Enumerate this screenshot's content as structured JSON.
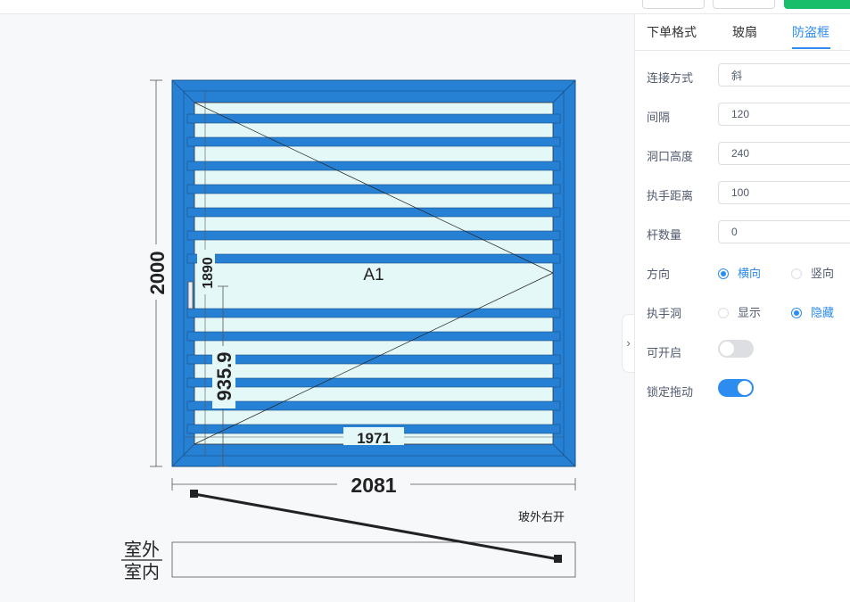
{
  "tabs": [
    {
      "label": "下单格式",
      "active": false
    },
    {
      "label": "玻扇",
      "active": false
    },
    {
      "label": "防盗框",
      "active": true
    }
  ],
  "form": {
    "connect": {
      "label": "连接方式",
      "value": "斜"
    },
    "gap": {
      "label": "间隔",
      "value": "120"
    },
    "hole_height": {
      "label": "洞口高度",
      "value": "240"
    },
    "handle_distance": {
      "label": "执手距离",
      "value": "100"
    },
    "rod_count": {
      "label": "杆数量",
      "value": "0"
    },
    "direction": {
      "label": "方向",
      "options": [
        "横向",
        "竖向"
      ],
      "selected": "横向"
    },
    "handle_hole": {
      "label": "执手洞",
      "options": [
        "显示",
        "隐藏"
      ],
      "selected": "隐藏"
    },
    "openable": {
      "label": "可开启",
      "on": false
    },
    "lock_drag": {
      "label": "锁定拖动",
      "on": true
    }
  },
  "drawing": {
    "panel_label": "A1",
    "height_total": "2000",
    "height_inner": "1890",
    "handle_height": "935.9",
    "width_inner": "1971",
    "width_total": "2081",
    "opening_note": "玻外右开",
    "outside_label": "室外",
    "inside_label": "室内"
  },
  "colors": {
    "frame": "#2680d4",
    "glass": "#e4f8f7",
    "accent": "#2d8cf0"
  },
  "icons": {
    "collapse": "chevron-right-icon"
  }
}
